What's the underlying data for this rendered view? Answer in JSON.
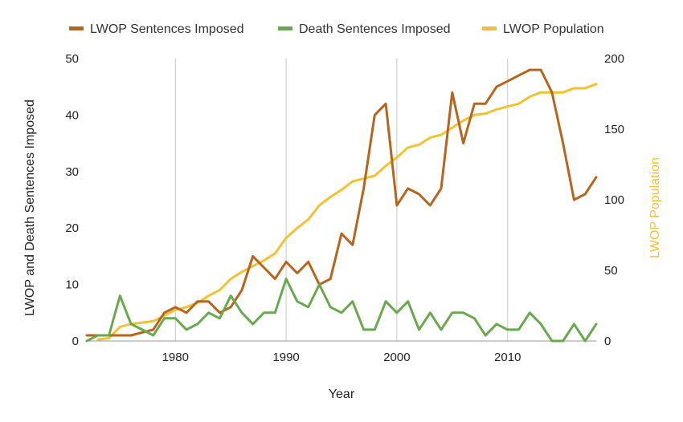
{
  "chart_data": {
    "type": "line",
    "xlabel": "Year",
    "ylabel": "LWOP and Death Sentences Imposed",
    "y2label": "LWOP Population",
    "xlim": [
      1972,
      2018
    ],
    "ylim": [
      0,
      50
    ],
    "y2lim": [
      0,
      200
    ],
    "x_ticks": [
      "1980",
      "1990",
      "2000",
      "2010"
    ],
    "y_ticks": [
      "0",
      "10",
      "20",
      "30",
      "40",
      "50"
    ],
    "y2_ticks": [
      "0",
      "50",
      "100",
      "150",
      "200"
    ],
    "grid": "vertical",
    "legend_position": "top",
    "series": [
      {
        "name": "LWOP Sentences Imposed",
        "axis": "left",
        "color": "#b5651d",
        "x": [
          1972,
          1973,
          1974,
          1975,
          1976,
          1977,
          1978,
          1979,
          1980,
          1981,
          1982,
          1983,
          1984,
          1985,
          1986,
          1987,
          1988,
          1989,
          1990,
          1991,
          1992,
          1993,
          1994,
          1995,
          1996,
          1997,
          1998,
          1999,
          2000,
          2001,
          2002,
          2003,
          2004,
          2005,
          2006,
          2007,
          2008,
          2009,
          2010,
          2011,
          2012,
          2013,
          2014,
          2015,
          2016,
          2017,
          2018
        ],
        "values": [
          1,
          1,
          1,
          1,
          1,
          1.5,
          2,
          5,
          6,
          5,
          7,
          7,
          5,
          6,
          9,
          15,
          13,
          11,
          14,
          12,
          14,
          10,
          11,
          19,
          17,
          27,
          40,
          42,
          24,
          27,
          26,
          24,
          27,
          44,
          35,
          42,
          42,
          45,
          46,
          47,
          48,
          48,
          44,
          35,
          25,
          26,
          29
        ]
      },
      {
        "name": "Death Sentences Imposed",
        "axis": "left",
        "color": "#6aa84f",
        "x": [
          1972,
          1973,
          1974,
          1975,
          1976,
          1977,
          1978,
          1979,
          1980,
          1981,
          1982,
          1983,
          1984,
          1985,
          1986,
          1987,
          1988,
          1989,
          1990,
          1991,
          1992,
          1993,
          1994,
          1995,
          1996,
          1997,
          1998,
          1999,
          2000,
          2001,
          2002,
          2003,
          2004,
          2005,
          2006,
          2007,
          2008,
          2009,
          2010,
          2011,
          2012,
          2013,
          2014,
          2015,
          2016,
          2017,
          2018
        ],
        "values": [
          0,
          1,
          1,
          8,
          3,
          2,
          1,
          4,
          4,
          2,
          3,
          5,
          4,
          8,
          5,
          3,
          5,
          5,
          11,
          7,
          6,
          10,
          6,
          5,
          7,
          2,
          2,
          7,
          5,
          7,
          2,
          5,
          2,
          5,
          5,
          4,
          1,
          3,
          2,
          2,
          5,
          3,
          0,
          0,
          3,
          0,
          3
        ]
      },
      {
        "name": "LWOP Population",
        "axis": "right",
        "color": "#f1c232",
        "x": [
          1973,
          1974,
          1975,
          1976,
          1977,
          1978,
          1979,
          1980,
          1981,
          1982,
          1983,
          1984,
          1985,
          1986,
          1987,
          1988,
          1989,
          1990,
          1991,
          1992,
          1993,
          1994,
          1995,
          1996,
          1997,
          1998,
          1999,
          2000,
          2001,
          2002,
          2003,
          2004,
          2005,
          2006,
          2007,
          2008,
          2009,
          2010,
          2011,
          2012,
          2013,
          2014,
          2015,
          2016,
          2017,
          2018
        ],
        "values": [
          1,
          2,
          10,
          12,
          13,
          14,
          18,
          22,
          24,
          27,
          32,
          36,
          44,
          49,
          53,
          57,
          62,
          73,
          80,
          86,
          96,
          102,
          107,
          113,
          115,
          117,
          124,
          130,
          137,
          139,
          144,
          146,
          151,
          156,
          160,
          161,
          164,
          166,
          168,
          173,
          176,
          176,
          176,
          179,
          179,
          182
        ]
      }
    ]
  }
}
